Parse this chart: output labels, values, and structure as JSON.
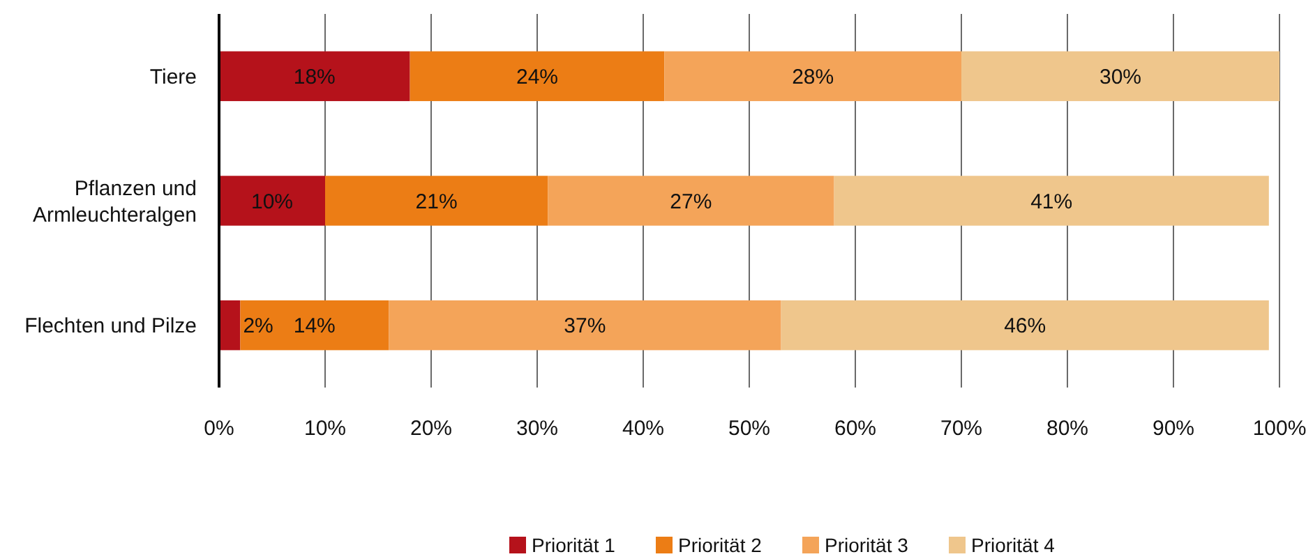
{
  "chart_data": {
    "type": "bar",
    "orientation": "horizontal",
    "stacked": true,
    "categories": [
      "Tiere",
      "Pflanzen und\nArmleuchteralgen",
      "Flechten und Pilze"
    ],
    "series": [
      {
        "name": "Priorität 1",
        "color": "#b5121b",
        "values": [
          18,
          10,
          2
        ],
        "value_labels": [
          "18%",
          "10%",
          "2%"
        ]
      },
      {
        "name": "Priorität 2",
        "color": "#ec7d15",
        "values": [
          24,
          21,
          14
        ],
        "value_labels": [
          "24%",
          "21%",
          "14%"
        ]
      },
      {
        "name": "Priorität 3",
        "color": "#f4a459",
        "values": [
          28,
          27,
          37
        ],
        "value_labels": [
          "28%",
          "27%",
          "37%"
        ]
      },
      {
        "name": "Priorität 4",
        "color": "#efc68c",
        "values": [
          30,
          41,
          46
        ],
        "value_labels": [
          "30%",
          "41%",
          "46%"
        ]
      }
    ],
    "xlim": [
      0,
      100
    ],
    "xticks": [
      {
        "value": 0,
        "label": "0%"
      },
      {
        "value": 10,
        "label": "10%"
      },
      {
        "value": 20,
        "label": "20%"
      },
      {
        "value": 30,
        "label": "30%"
      },
      {
        "value": 40,
        "label": "40%"
      },
      {
        "value": 50,
        "label": "50%"
      },
      {
        "value": 60,
        "label": "60%"
      },
      {
        "value": 70,
        "label": "70%"
      },
      {
        "value": 80,
        "label": "80%"
      },
      {
        "value": 90,
        "label": "90%"
      },
      {
        "value": 100,
        "label": "100%"
      }
    ],
    "grid": "x",
    "legend": "bottom"
  }
}
